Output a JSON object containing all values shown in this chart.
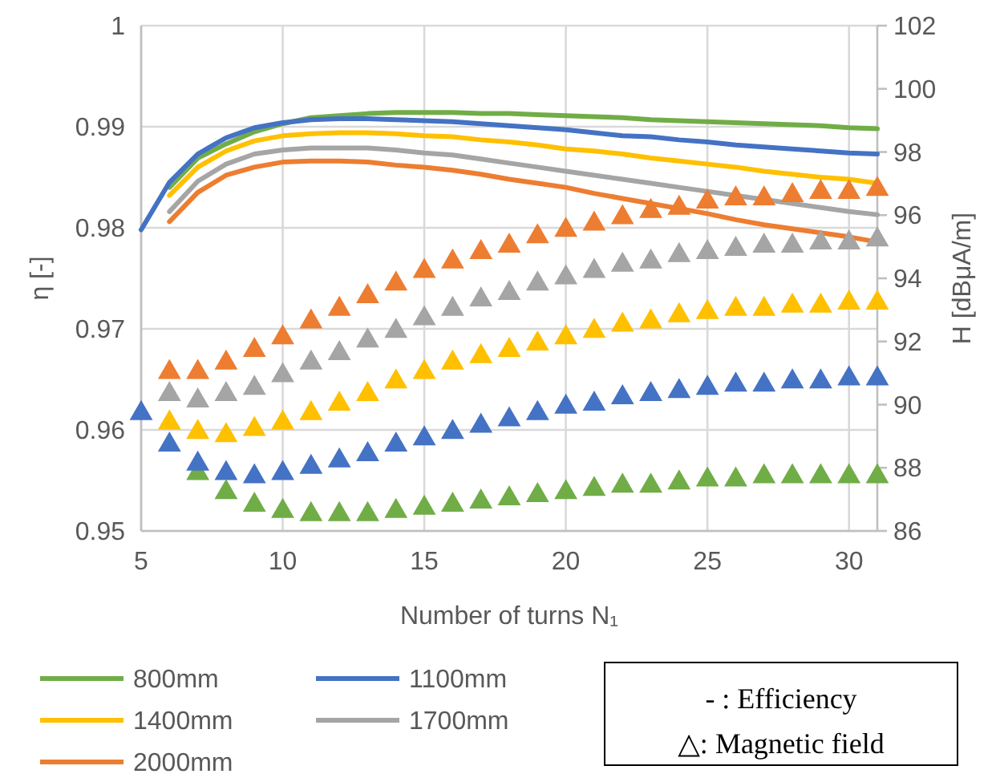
{
  "chart_data": {
    "type": "line",
    "xlabel": "Number of turns N₁",
    "ylabel": "η [-]",
    "y2label": "H [dBμA/m]",
    "x": [
      5,
      6,
      7,
      8,
      9,
      10,
      11,
      12,
      13,
      14,
      15,
      16,
      17,
      18,
      19,
      20,
      21,
      22,
      23,
      24,
      25,
      26,
      27,
      28,
      29,
      30,
      31
    ],
    "xlim": [
      5,
      31
    ],
    "xticks": [
      5,
      10,
      15,
      20,
      25,
      30
    ],
    "ylim": [
      0.95,
      1
    ],
    "yticks": [
      0.95,
      0.96,
      0.97,
      0.98,
      0.99,
      1
    ],
    "y2lim": [
      86,
      102
    ],
    "y2ticks": [
      86,
      88,
      90,
      92,
      94,
      96,
      98,
      100,
      102
    ],
    "grid": true,
    "legend": "bottom",
    "marker": "none",
    "line_style": "solid",
    "annotations": [
      "- : Efficiency",
      "△: Magnetic field"
    ],
    "series": [
      {
        "name": "800mm",
        "color": "#70ad47",
        "values": [
          null,
          0.984,
          0.9869,
          0.9883,
          0.9895,
          0.9903,
          0.9909,
          0.9911,
          0.9913,
          0.9914,
          0.9914,
          0.9914,
          0.9913,
          0.9913,
          0.9912,
          0.9911,
          0.991,
          0.9909,
          0.9907,
          0.9906,
          0.9905,
          0.9904,
          0.9903,
          0.9902,
          0.9901,
          0.9899,
          0.9898
        ]
      },
      {
        "name": "1100mm",
        "color": "#4472c4",
        "values": [
          0.9798,
          0.9845,
          0.9873,
          0.9889,
          0.9899,
          0.9904,
          0.9907,
          0.9908,
          0.9908,
          0.9907,
          0.9906,
          0.9905,
          0.9903,
          0.9901,
          0.9899,
          0.9897,
          0.9894,
          0.9891,
          0.989,
          0.9887,
          0.9885,
          0.9882,
          0.988,
          0.9878,
          0.9876,
          0.9874,
          0.9873
        ]
      },
      {
        "name": "1400mm",
        "color": "#ffc000",
        "values": [
          null,
          0.9832,
          0.986,
          0.9876,
          0.9886,
          0.9891,
          0.9893,
          0.9894,
          0.9894,
          0.9893,
          0.9891,
          0.989,
          0.9887,
          0.9885,
          0.9882,
          0.9878,
          0.9876,
          0.9873,
          0.9869,
          0.9866,
          0.9863,
          0.986,
          0.9856,
          0.9853,
          0.985,
          0.9848,
          0.9844
        ]
      },
      {
        "name": "1700mm",
        "color": "#a5a5a5",
        "values": [
          null,
          0.9816,
          0.9846,
          0.9863,
          0.9873,
          0.9877,
          0.9879,
          0.9879,
          0.9879,
          0.9877,
          0.9874,
          0.9872,
          0.9868,
          0.9864,
          0.986,
          0.9856,
          0.9852,
          0.9848,
          0.9844,
          0.984,
          0.9836,
          0.9832,
          0.9828,
          0.9824,
          0.982,
          0.9816,
          0.9813
        ]
      },
      {
        "name": "2000mm",
        "color": "#ed7d31",
        "values": [
          null,
          0.9806,
          0.9835,
          0.9852,
          0.986,
          0.9865,
          0.9866,
          0.9866,
          0.9865,
          0.9862,
          0.986,
          0.9857,
          0.9853,
          0.9848,
          0.9844,
          0.984,
          0.9834,
          0.9829,
          0.9824,
          0.9819,
          0.9814,
          0.9808,
          0.9803,
          0.9799,
          0.9795,
          0.9791,
          0.9786
        ]
      },
      {
        "type": "scatter",
        "axis": "y2",
        "marker": "triangle",
        "color": "#70ad47",
        "values": [
          null,
          null,
          87.9,
          87.3,
          86.9,
          86.7,
          86.6,
          86.6,
          86.6,
          86.7,
          86.8,
          86.9,
          87.0,
          87.1,
          87.2,
          87.3,
          87.4,
          87.5,
          87.5,
          87.6,
          87.7,
          87.7,
          87.8,
          87.8,
          87.8,
          87.8,
          87.8
        ]
      },
      {
        "type": "scatter",
        "axis": "y2",
        "marker": "triangle",
        "color": "#4472c4",
        "values": [
          89.8,
          88.8,
          88.2,
          87.9,
          87.8,
          87.9,
          88.1,
          88.3,
          88.5,
          88.8,
          89.0,
          89.2,
          89.4,
          89.6,
          89.8,
          90.0,
          90.1,
          90.3,
          90.4,
          90.5,
          90.6,
          90.7,
          90.7,
          90.8,
          90.8,
          90.9,
          90.9
        ]
      },
      {
        "type": "scatter",
        "axis": "y2",
        "marker": "triangle",
        "color": "#ffc000",
        "values": [
          null,
          89.5,
          89.2,
          89.1,
          89.3,
          89.5,
          89.8,
          90.1,
          90.4,
          90.8,
          91.1,
          91.4,
          91.6,
          91.8,
          92.0,
          92.2,
          92.4,
          92.6,
          92.7,
          92.9,
          93.0,
          93.1,
          93.1,
          93.2,
          93.2,
          93.3,
          93.3
        ]
      },
      {
        "type": "scatter",
        "axis": "y2",
        "marker": "triangle",
        "color": "#a5a5a5",
        "values": [
          null,
          90.4,
          90.2,
          90.4,
          90.6,
          91.0,
          91.4,
          91.7,
          92.1,
          92.4,
          92.8,
          93.1,
          93.4,
          93.6,
          93.9,
          94.1,
          94.3,
          94.5,
          94.6,
          94.8,
          94.9,
          95.0,
          95.1,
          95.1,
          95.2,
          95.2,
          95.3
        ]
      },
      {
        "type": "scatter",
        "axis": "y2",
        "marker": "triangle",
        "color": "#ed7d31",
        "values": [
          null,
          91.1,
          91.1,
          91.4,
          91.8,
          92.2,
          92.7,
          93.1,
          93.5,
          93.9,
          94.3,
          94.6,
          94.9,
          95.1,
          95.4,
          95.6,
          95.8,
          96.0,
          96.2,
          96.3,
          96.5,
          96.6,
          96.6,
          96.7,
          96.8,
          96.8,
          96.9
        ]
      }
    ]
  }
}
